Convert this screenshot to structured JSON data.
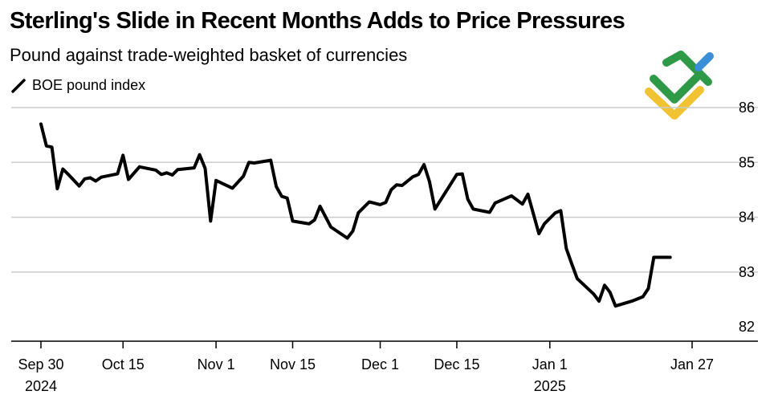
{
  "title": "Sterling's Slide in Recent Months Adds to Price Pressures",
  "subtitle": "Pound against trade-weighted basket of currencies",
  "colors": {
    "line": "#000000",
    "grid": "#cccccc",
    "logo_green": "#2e9a48",
    "logo_yellow": "#f1c232",
    "logo_blue": "#3b8fd9"
  },
  "chart_data": {
    "type": "line",
    "title": "Sterling's Slide in Recent Months Adds to Price Pressures",
    "subtitle": "Pound against trade-weighted basket of currencies",
    "xlabel": "",
    "ylabel": "",
    "ylim": [
      81.8,
      86.4
    ],
    "yticks": [
      82,
      83,
      84,
      85,
      86
    ],
    "grid": true,
    "legend_position": "top-left",
    "x_start_label": "Sep 30 2024",
    "xticks": [
      {
        "day": 0,
        "label": "Sep 30",
        "sublabel": "2024"
      },
      {
        "day": 15,
        "label": "Oct 15",
        "sublabel": ""
      },
      {
        "day": 32,
        "label": "Nov 1",
        "sublabel": ""
      },
      {
        "day": 46,
        "label": "Nov 15",
        "sublabel": ""
      },
      {
        "day": 62,
        "label": "Dec 1",
        "sublabel": ""
      },
      {
        "day": 76,
        "label": "Dec 15",
        "sublabel": ""
      },
      {
        "day": 93,
        "label": "Jan 1",
        "sublabel": "2025"
      },
      {
        "day": 119,
        "label": "Jan 27",
        "sublabel": ""
      }
    ],
    "series": [
      {
        "name": "BOE pound index",
        "points": [
          [
            0,
            85.7
          ],
          [
            1,
            85.3
          ],
          [
            2,
            85.28
          ],
          [
            3,
            84.52
          ],
          [
            4,
            84.88
          ],
          [
            5,
            84.78
          ],
          [
            7,
            84.57
          ],
          [
            8,
            84.7
          ],
          [
            9,
            84.72
          ],
          [
            10,
            84.66
          ],
          [
            11,
            84.73
          ],
          [
            14,
            84.79
          ],
          [
            15,
            85.13
          ],
          [
            16,
            84.69
          ],
          [
            18,
            84.92
          ],
          [
            21,
            84.86
          ],
          [
            22,
            84.78
          ],
          [
            23,
            84.81
          ],
          [
            24,
            84.77
          ],
          [
            25,
            84.87
          ],
          [
            28,
            84.9
          ],
          [
            29,
            85.14
          ],
          [
            30,
            84.89
          ],
          [
            31,
            83.93
          ],
          [
            32,
            84.67
          ],
          [
            35,
            84.53
          ],
          [
            37,
            84.75
          ],
          [
            38,
            85.0
          ],
          [
            39,
            84.99
          ],
          [
            42,
            85.04
          ],
          [
            43,
            84.56
          ],
          [
            44,
            84.38
          ],
          [
            45,
            84.35
          ],
          [
            46,
            83.93
          ],
          [
            49,
            83.88
          ],
          [
            50,
            83.95
          ],
          [
            51,
            84.2
          ],
          [
            53,
            83.82
          ],
          [
            56,
            83.62
          ],
          [
            57,
            83.75
          ],
          [
            58,
            84.08
          ],
          [
            60,
            84.28
          ],
          [
            62,
            84.23
          ],
          [
            63,
            84.27
          ],
          [
            64,
            84.5
          ],
          [
            65,
            84.59
          ],
          [
            66,
            84.58
          ],
          [
            68,
            84.74
          ],
          [
            69,
            84.78
          ],
          [
            70,
            84.96
          ],
          [
            71,
            84.65
          ],
          [
            72,
            84.15
          ],
          [
            76,
            84.78
          ],
          [
            77,
            84.79
          ],
          [
            78,
            84.33
          ],
          [
            79,
            84.15
          ],
          [
            82,
            84.09
          ],
          [
            83,
            84.26
          ],
          [
            86,
            84.39
          ],
          [
            88,
            84.24
          ],
          [
            89,
            84.42
          ],
          [
            91,
            83.7
          ],
          [
            92,
            83.88
          ],
          [
            94,
            84.08
          ],
          [
            95,
            84.12
          ],
          [
            96,
            83.43
          ],
          [
            97,
            83.15
          ],
          [
            98,
            82.88
          ],
          [
            101,
            82.6
          ],
          [
            102,
            82.47
          ],
          [
            103,
            82.76
          ],
          [
            104,
            82.63
          ],
          [
            105,
            82.38
          ],
          [
            108,
            82.47
          ],
          [
            110,
            82.55
          ],
          [
            111,
            82.7
          ],
          [
            112,
            83.27
          ],
          [
            115,
            83.27
          ]
        ]
      }
    ]
  }
}
